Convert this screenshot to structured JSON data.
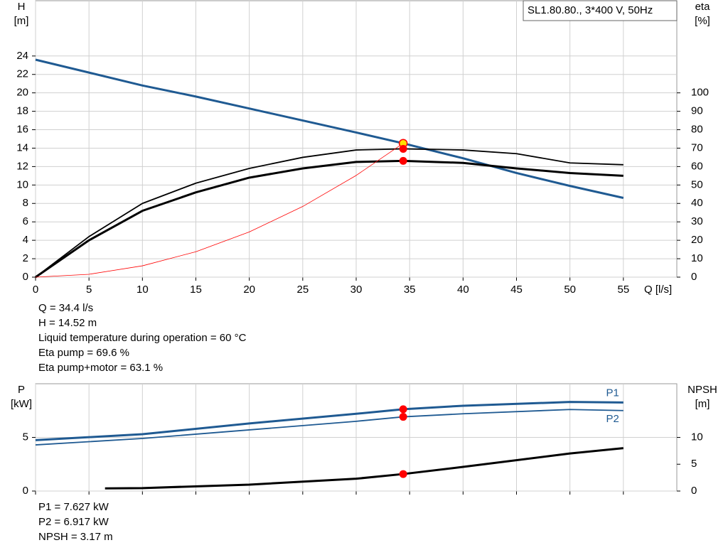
{
  "chart_data": [
    {
      "type": "line",
      "title": "SL1.80.80., 3*400 V, 50Hz",
      "ylabel": "H",
      "yunit": "[m]",
      "y2label": "eta",
      "y2unit": "[%]",
      "xlabel": "Q [l/s]",
      "xlim": [
        0,
        60
      ],
      "xticks": [
        0,
        5,
        10,
        15,
        20,
        25,
        30,
        35,
        40,
        45,
        50,
        55
      ],
      "ylim": [
        0,
        30
      ],
      "yticks": [
        0,
        2,
        4,
        6,
        8,
        10,
        12,
        14,
        16,
        18,
        20,
        22,
        24
      ],
      "y2lim": [
        0,
        150
      ],
      "y2ticks": [
        0,
        10,
        20,
        30,
        40,
        50,
        60,
        70,
        80,
        90,
        100
      ],
      "grid": true,
      "operating_x": 34.4,
      "series": [
        {
          "color": "#1f5a92",
          "style": "thick",
          "marker": "#ffe000",
          "x": [
            0,
            5,
            10,
            15,
            20,
            25,
            30,
            34.4,
            40,
            45,
            50,
            55
          ],
          "values": [
            23.6,
            22.2,
            20.8,
            19.6,
            18.3,
            17.0,
            15.7,
            14.52,
            12.9,
            11.3,
            9.9,
            8.6
          ]
        },
        {
          "color": "#000000",
          "style": "medium",
          "axis": "y2",
          "marker": "#ff0000",
          "x": [
            0,
            5,
            10,
            15,
            20,
            25,
            30,
            34.4,
            40,
            45,
            50,
            55
          ],
          "values": [
            0,
            22,
            40,
            51,
            59,
            65,
            69,
            69.6,
            69,
            67,
            62,
            61
          ]
        },
        {
          "color": "#000000",
          "style": "thick",
          "axis": "y2",
          "marker": "#ff0000",
          "x": [
            0,
            5,
            10,
            15,
            20,
            25,
            30,
            34.4,
            40,
            45,
            50,
            55
          ],
          "values": [
            0,
            20,
            36,
            46,
            54,
            59,
            62.5,
            63.1,
            62,
            59,
            56.5,
            55
          ]
        },
        {
          "color": "#ff0000",
          "style": "thin",
          "x": [
            0,
            5,
            10,
            15,
            20,
            25,
            30,
            34.4
          ],
          "values": [
            0,
            0.31,
            1.23,
            2.76,
            4.91,
            7.67,
            11.04,
            14.52
          ]
        }
      ],
      "annotations": [
        "Q = 34.4 l/s",
        "H = 14.52 m",
        "Liquid temperature during operation = 60 °C",
        "Eta pump = 69.6 %",
        "Eta pump+motor = 63.1 %"
      ]
    },
    {
      "type": "line",
      "ylabel": "P",
      "yunit": "[kW]",
      "y2label": "NPSH",
      "y2unit": "[m]",
      "xlim": [
        0,
        60
      ],
      "xticks": [
        0,
        5,
        10,
        15,
        20,
        25,
        30,
        35,
        40,
        45,
        50,
        55
      ],
      "ylim": [
        0,
        10
      ],
      "yticks": [
        0,
        5
      ],
      "y2lim": [
        0,
        20
      ],
      "y2ticks": [
        0,
        5,
        10
      ],
      "grid": true,
      "operating_x": 34.4,
      "series": [
        {
          "name": "P1",
          "color": "#1f5a92",
          "style": "thick",
          "marker": "#ff0000",
          "label_side": "above",
          "x": [
            0,
            10,
            20,
            30,
            34.4,
            40,
            50,
            55
          ],
          "values": [
            4.74,
            5.3,
            6.3,
            7.2,
            7.627,
            7.95,
            8.3,
            8.25
          ]
        },
        {
          "name": "P2",
          "color": "#1f5a92",
          "style": "medium",
          "marker": "#ff0000",
          "label_side": "below",
          "x": [
            0,
            10,
            20,
            30,
            34.4,
            40,
            50,
            55
          ],
          "values": [
            4.3,
            4.9,
            5.7,
            6.5,
            6.917,
            7.2,
            7.6,
            7.5
          ]
        },
        {
          "color": "#000000",
          "style": "thick",
          "axis": "y2",
          "marker": "#ff0000",
          "x": [
            6.5,
            10,
            20,
            30,
            34.4,
            40,
            50,
            55
          ],
          "values": [
            0.5,
            0.55,
            1.2,
            2.3,
            3.17,
            4.5,
            7.0,
            8.0
          ]
        }
      ],
      "annotations": [
        "P1 = 7.627 kW",
        "P2 = 6.917 kW",
        "NPSH = 3.17 m"
      ]
    }
  ]
}
